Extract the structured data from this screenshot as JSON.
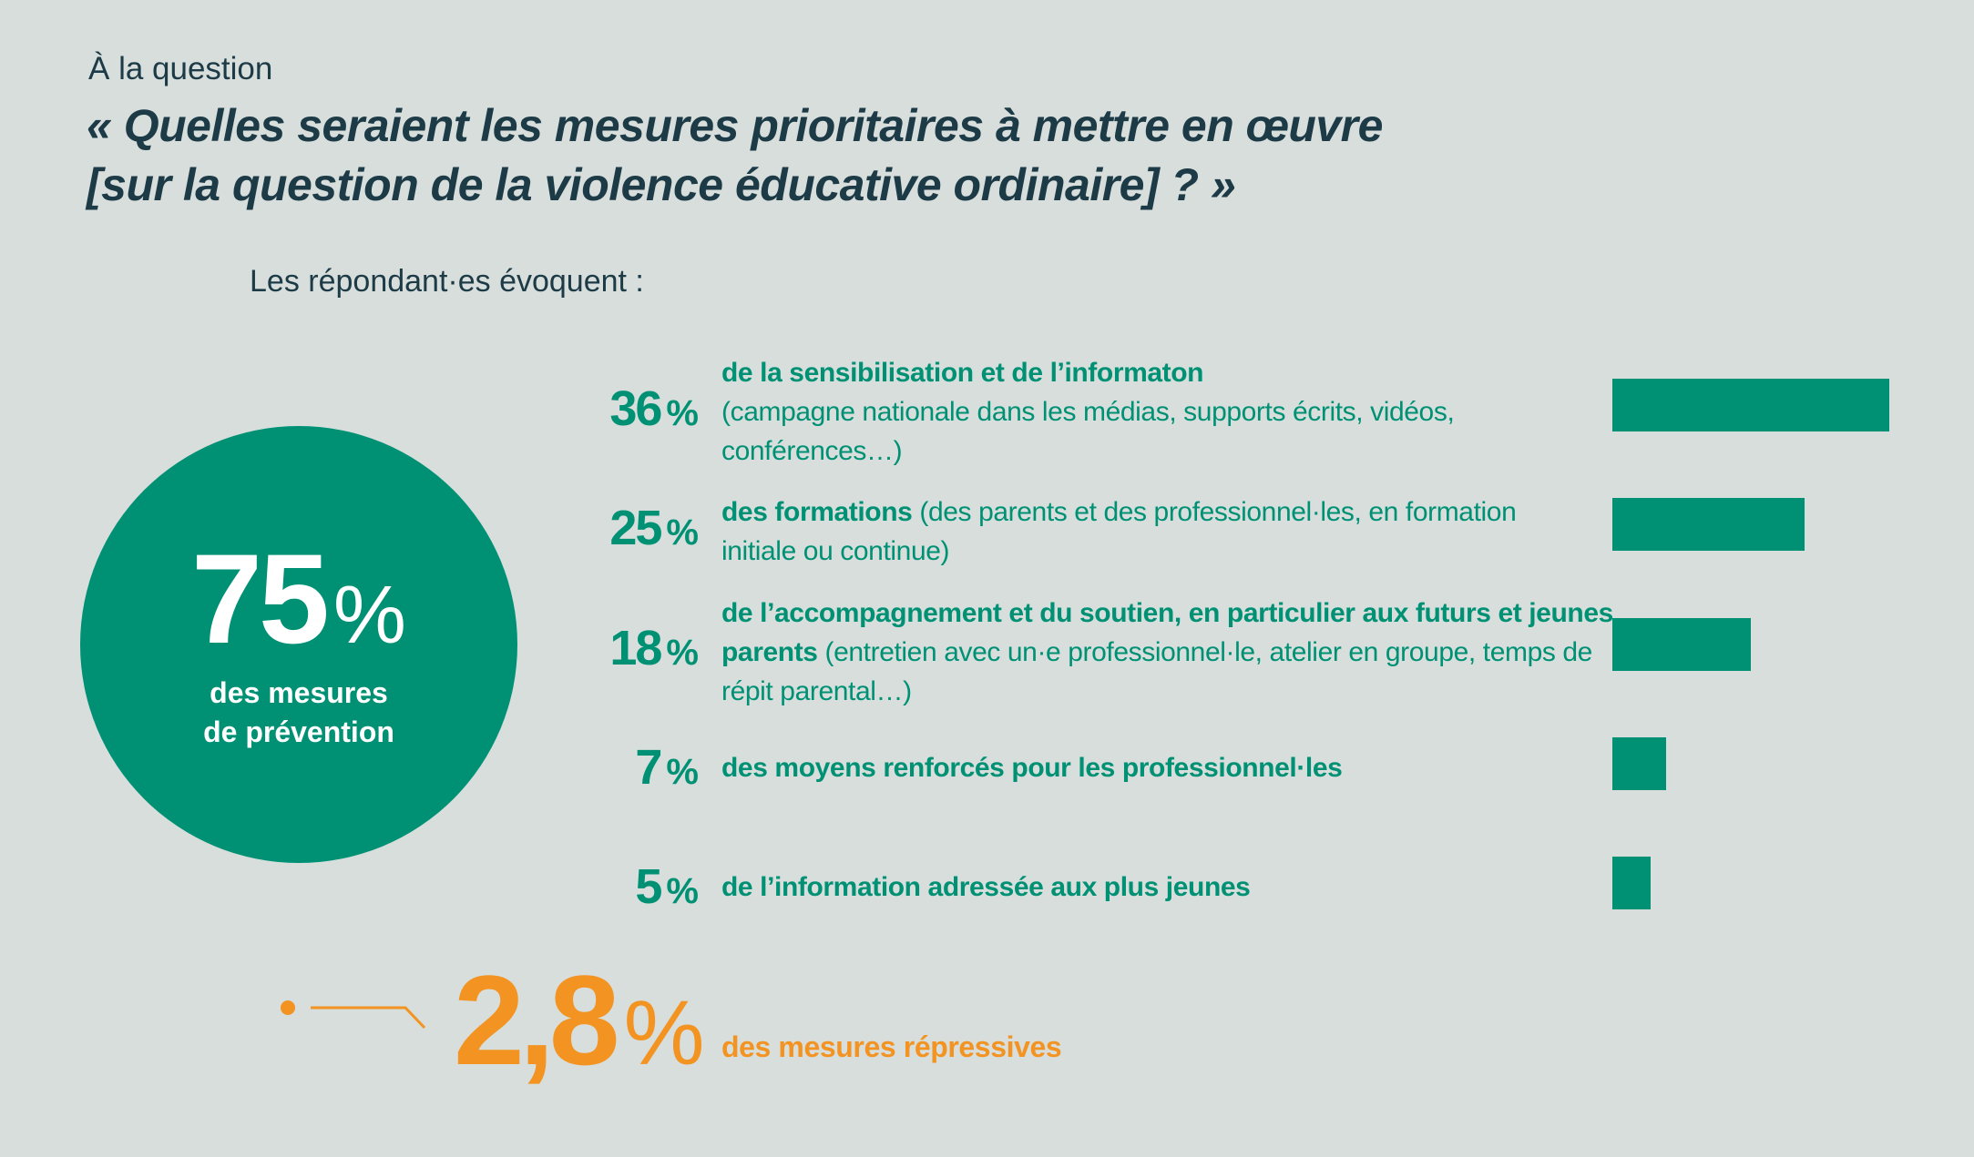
{
  "header": {
    "intro": "À la question",
    "title_line1": "« Quelles seraient les mesures prioritaires à mettre en œuvre",
    "title_line2": "[sur la question de la violence éducative ordinaire] ? »",
    "subtitle": "Les répondant·es évoquent :"
  },
  "prevention": {
    "value": "75",
    "unit": "%",
    "label_line1": "des mesures",
    "label_line2": "de prévention"
  },
  "repressive": {
    "value": "2,8",
    "unit": "%",
    "label": "des mesures répressives"
  },
  "colors": {
    "background": "#d7dedb",
    "green": "#009175",
    "orange": "#f39322",
    "text_dark": "#1d3a47"
  },
  "chart_data": {
    "type": "bar",
    "orientation": "horizontal",
    "categories": [
      "de la sensibilisation et de l’informaton",
      "des formations",
      "de l’accompagnement et du soutien, en particulier aux futurs et jeunes parents",
      "des moyens renforcés pour les professionnel·les",
      "de l’information adressée aux plus jeunes"
    ],
    "values": [
      36,
      25,
      18,
      7,
      5
    ],
    "xlim": [
      0,
      36
    ],
    "unit": "%"
  },
  "items": [
    {
      "value": "36",
      "unit": "%",
      "bold": "de la sensibilisation et de l’informaton",
      "detail": "(campagne nationale dans les médias, supports écrits, vidéos, conférences…)",
      "bold_newline": true
    },
    {
      "value": "25",
      "unit": "%",
      "bold": "des formations",
      "detail": "(des parents et des professionnel·les, en formation initiale ou continue)"
    },
    {
      "value": "18",
      "unit": "%",
      "bold": "de l’accompagnement et du soutien, en particulier aux futurs et jeunes parents",
      "detail": "(entretien avec un·e professionnel·le, atelier en groupe, temps de répit parental…)"
    },
    {
      "value": "7",
      "unit": "%",
      "bold": "des moyens renforcés pour les professionnel·les",
      "detail": ""
    },
    {
      "value": "5",
      "unit": "%",
      "bold": "de l’information adressée aux plus jeunes",
      "detail": ""
    }
  ]
}
